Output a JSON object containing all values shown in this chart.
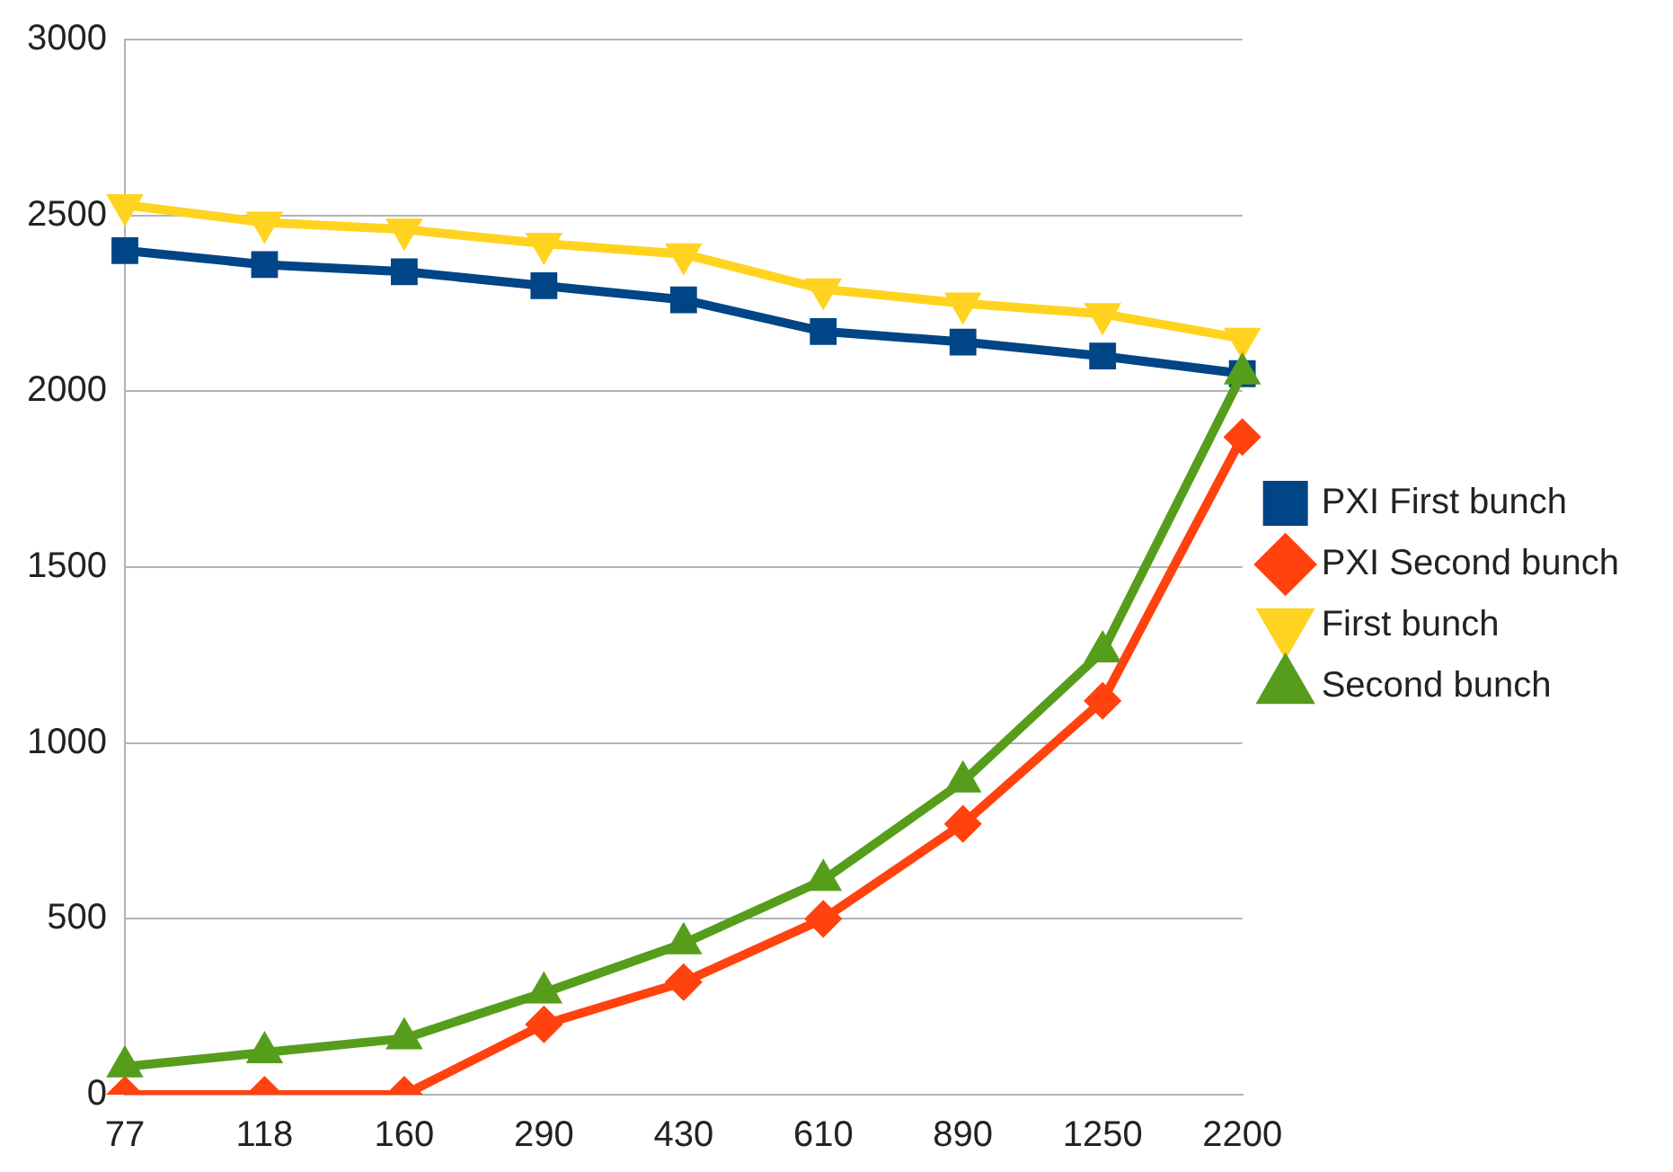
{
  "chart_data": {
    "type": "line",
    "categories": [
      "77",
      "118",
      "160",
      "290",
      "430",
      "610",
      "890",
      "1250",
      "2200"
    ],
    "series": [
      {
        "name": "PXI First bunch",
        "color": "#004586",
        "marker": "square",
        "values": [
          2400,
          2360,
          2340,
          2300,
          2260,
          2170,
          2140,
          2100,
          2050
        ]
      },
      {
        "name": "PXI Second bunch",
        "color": "#ff420e",
        "marker": "diamond",
        "values": [
          0,
          0,
          0,
          200,
          320,
          500,
          770,
          1120,
          1870
        ]
      },
      {
        "name": "First bunch",
        "color": "#ffd320",
        "marker": "triangle-down",
        "values": [
          2530,
          2480,
          2460,
          2420,
          2390,
          2290,
          2250,
          2220,
          2150
        ]
      },
      {
        "name": "Second bunch",
        "color": "#579d1c",
        "marker": "triangle",
        "values": [
          80,
          120,
          160,
          290,
          430,
          610,
          890,
          1260,
          2050
        ]
      }
    ],
    "ylim": [
      0,
      3000
    ],
    "yticks": [
      0,
      500,
      1000,
      1500,
      2000,
      2500,
      3000
    ],
    "grid": "y",
    "legend": "right",
    "line_style": "solid"
  }
}
